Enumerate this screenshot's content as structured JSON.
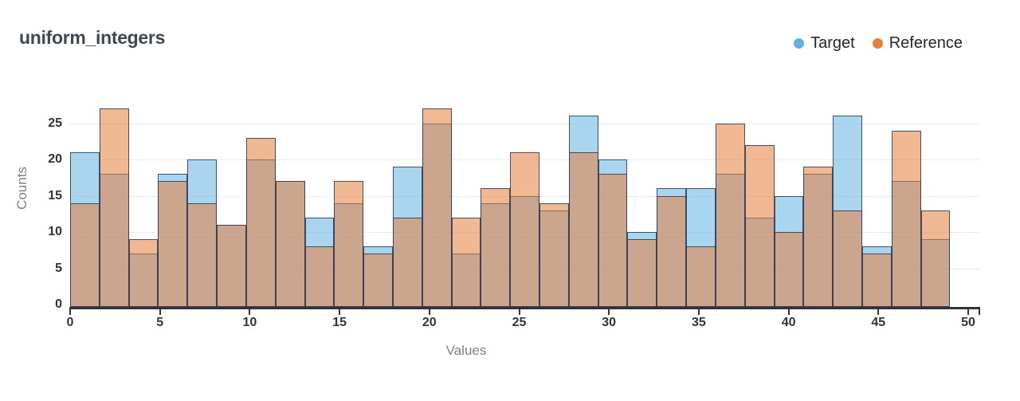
{
  "title": "uniform_integers",
  "legend": {
    "items": [
      {
        "label": "Target",
        "color": "#64b2e2"
      },
      {
        "label": "Reference",
        "color": "#e67e3c"
      }
    ]
  },
  "colors": {
    "bar_border": "#2c3a52",
    "gridline": "#e9eaee",
    "axis_line": "#31353b",
    "tick_label": "#30343a",
    "axis_title": "#7c8087",
    "title_text": "#3f4752",
    "legend_text": "#23272e"
  },
  "chart_data": {
    "type": "bar",
    "subtype": "overlaid-histogram",
    "title": "uniform_integers",
    "xlabel": "Values",
    "ylabel": "Counts",
    "x_range": [
      0,
      50
    ],
    "y_range": [
      0,
      28
    ],
    "x_ticks": [
      0,
      5,
      10,
      15,
      20,
      25,
      30,
      35,
      40,
      45,
      50
    ],
    "y_ticks": [
      0,
      5,
      10,
      15,
      20,
      25
    ],
    "bin_start": 0,
    "bin_width": 1.63333,
    "bin_count": 30,
    "bar_opacity": 0.55,
    "grid": "horizontal",
    "legend_position": "top-right",
    "series": [
      {
        "name": "Target",
        "color": "#64b2e2",
        "values": [
          21,
          18,
          7,
          18,
          20,
          11,
          20,
          17,
          12,
          14,
          8,
          19,
          25,
          7,
          14,
          15,
          13,
          26,
          20,
          10,
          16,
          16,
          18,
          12,
          15,
          18,
          26,
          8,
          17,
          9
        ]
      },
      {
        "name": "Reference",
        "color": "#e67e3c",
        "values": [
          14,
          27,
          9,
          17,
          14,
          11,
          23,
          17,
          8,
          17,
          7,
          12,
          27,
          12,
          16,
          21,
          14,
          21,
          18,
          9,
          15,
          8,
          25,
          22,
          10,
          19,
          13,
          7,
          24,
          13
        ]
      }
    ]
  }
}
